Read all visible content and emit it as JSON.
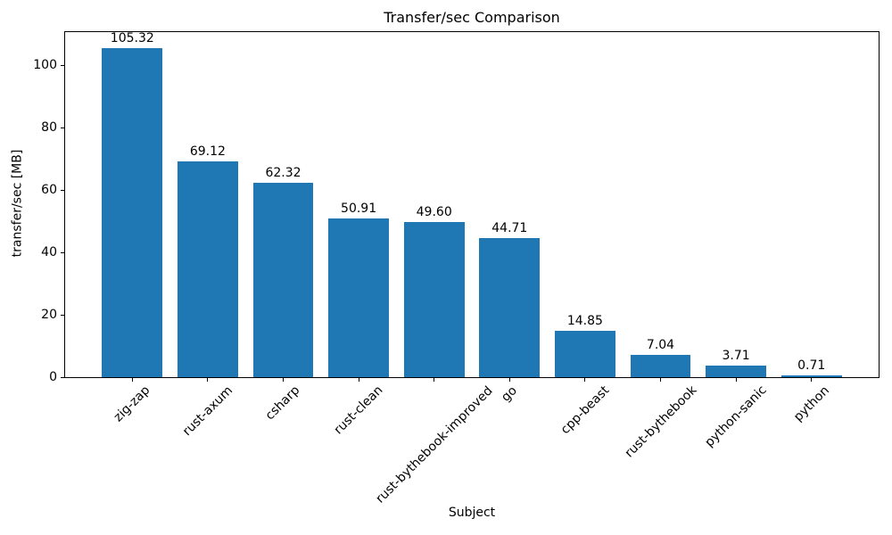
{
  "chart_data": {
    "type": "bar",
    "title": "Transfer/sec Comparison",
    "xlabel": "Subject",
    "ylabel": "transfer/sec [MB]",
    "categories": [
      "zig-zap",
      "rust-axum",
      "csharp",
      "rust-clean",
      "rust-bythebook-improved",
      "go",
      "cpp-beast",
      "rust-bythebook",
      "python-sanic",
      "python"
    ],
    "values": [
      105.32,
      69.12,
      62.32,
      50.91,
      49.6,
      44.71,
      14.85,
      7.04,
      3.71,
      0.71
    ],
    "bar_labels": [
      "105.32",
      "69.12",
      "62.32",
      "50.91",
      "49.60",
      "44.71",
      "14.85",
      "7.04",
      "3.71",
      "0.71"
    ],
    "yticks": [
      0,
      20,
      40,
      60,
      80,
      100
    ],
    "ylim": [
      0,
      110.59
    ],
    "xtick_rotation_deg": 45,
    "bar_color": "#1f77b4",
    "text_color": "#000000",
    "grid": false,
    "legend_position": "none"
  }
}
